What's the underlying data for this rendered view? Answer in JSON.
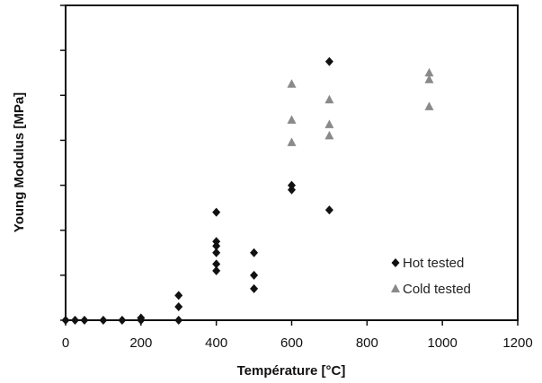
{
  "chart_data": {
    "type": "scatter",
    "xlabel": "Température [°C]",
    "ylabel": "Young Modulus [MPa]",
    "xlim": [
      0,
      1200
    ],
    "ylim": [
      0,
      7
    ],
    "x_ticks": [
      "0",
      "200",
      "400",
      "600",
      "800",
      "1000",
      "1200"
    ],
    "y_tick_labels_shown": false,
    "grid": false,
    "legend_position": "lower-right",
    "series": [
      {
        "name": "Hot tested",
        "marker": "diamond",
        "color": "#111111",
        "points": [
          {
            "x": 0,
            "y": 0.0
          },
          {
            "x": 25,
            "y": 0.0
          },
          {
            "x": 50,
            "y": 0.0
          },
          {
            "x": 100,
            "y": 0.0
          },
          {
            "x": 150,
            "y": 0.0
          },
          {
            "x": 200,
            "y": 0.0
          },
          {
            "x": 200,
            "y": 0.05
          },
          {
            "x": 300,
            "y": 0.0
          },
          {
            "x": 300,
            "y": 0.3
          },
          {
            "x": 300,
            "y": 0.55
          },
          {
            "x": 400,
            "y": 1.1
          },
          {
            "x": 400,
            "y": 1.25
          },
          {
            "x": 400,
            "y": 1.5
          },
          {
            "x": 400,
            "y": 1.65
          },
          {
            "x": 400,
            "y": 1.75
          },
          {
            "x": 400,
            "y": 2.4
          },
          {
            "x": 500,
            "y": 0.7
          },
          {
            "x": 500,
            "y": 1.0
          },
          {
            "x": 500,
            "y": 1.5
          },
          {
            "x": 600,
            "y": 2.9
          },
          {
            "x": 600,
            "y": 3.0
          },
          {
            "x": 700,
            "y": 2.45
          },
          {
            "x": 700,
            "y": 5.75
          }
        ]
      },
      {
        "name": "Cold tested",
        "marker": "triangle",
        "color": "#8a8a8a",
        "points": [
          {
            "x": 600,
            "y": 3.95
          },
          {
            "x": 600,
            "y": 4.45
          },
          {
            "x": 600,
            "y": 5.25
          },
          {
            "x": 700,
            "y": 4.1
          },
          {
            "x": 700,
            "y": 4.35
          },
          {
            "x": 700,
            "y": 4.9
          },
          {
            "x": 965,
            "y": 4.75
          },
          {
            "x": 965,
            "y": 5.35
          },
          {
            "x": 965,
            "y": 5.5
          }
        ]
      }
    ]
  }
}
